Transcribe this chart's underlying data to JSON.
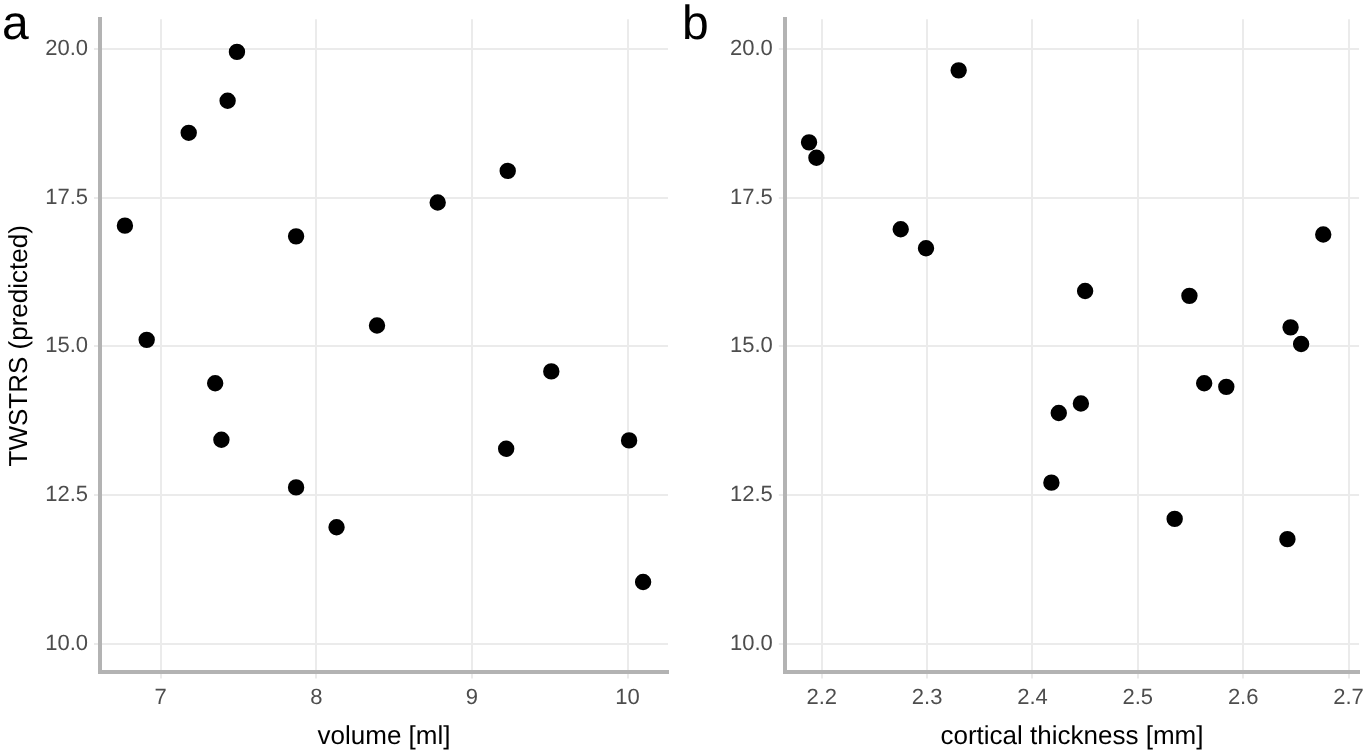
{
  "chart_data": [
    {
      "type": "scatter",
      "title": "a",
      "xlabel": "volume [ml]",
      "ylabel": "TWSTRS (predicted)",
      "color": "#000000",
      "marker": "circle",
      "grid": true,
      "x": [
        7.49,
        7.43,
        7.18,
        6.77,
        7.87,
        8.78,
        9.23,
        6.91,
        8.39,
        7.35,
        7.39,
        9.51,
        9.22,
        10.01,
        7.87,
        8.13,
        10.1
      ],
      "values": [
        19.95,
        19.13,
        18.59,
        17.03,
        16.85,
        17.42,
        17.95,
        15.11,
        15.35,
        14.38,
        13.43,
        14.58,
        13.28,
        13.42,
        12.63,
        11.96,
        11.04
      ],
      "xlim": [
        6.61,
        10.26
      ],
      "xticks": [
        7,
        8,
        9,
        10
      ],
      "ylim": [
        9.52,
        20.5
      ],
      "yticks": [
        {
          "value": 10,
          "label": "10.0"
        },
        {
          "value": 12.5,
          "label": "12.5"
        },
        {
          "value": 15,
          "label": "15.0"
        },
        {
          "value": 17.5,
          "label": "17.5"
        },
        {
          "value": 20,
          "label": "20.0"
        }
      ]
    },
    {
      "type": "scatter",
      "title": "b",
      "xlabel": "cortical thickness [mm]",
      "color": "#000000",
      "marker": "circle",
      "grid": true,
      "x": [
        2.188,
        2.195,
        2.33,
        2.275,
        2.299,
        2.45,
        2.549,
        2.676,
        2.645,
        2.655,
        2.563,
        2.584,
        2.446,
        2.425,
        2.418,
        2.535,
        2.642
      ],
      "values": [
        18.43,
        18.17,
        19.64,
        16.97,
        16.65,
        15.93,
        15.85,
        16.88,
        15.32,
        15.04,
        14.38,
        14.32,
        14.04,
        13.88,
        12.71,
        12.1,
        11.76
      ],
      "xlim": [
        2.165,
        2.71
      ],
      "xticks": [
        2.2,
        2.3,
        2.4,
        2.5,
        2.6,
        2.7
      ],
      "ylim": [
        9.52,
        20.5
      ],
      "yticks": [
        {
          "value": 10,
          "label": "10.0"
        },
        {
          "value": 12.5,
          "label": "12.5"
        },
        {
          "value": 15,
          "label": "15.0"
        },
        {
          "value": 17.5,
          "label": "17.5"
        },
        {
          "value": 20,
          "label": "20.0"
        }
      ]
    }
  ]
}
